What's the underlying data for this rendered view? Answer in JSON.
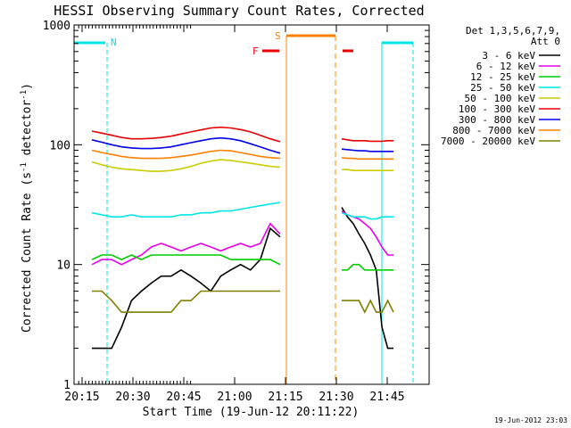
{
  "chart_data": {
    "type": "line",
    "title": "HESSI Observing Summary Count Rates, Corrected",
    "xlabel": "Start Time (19-Jun-12 20:11:22)",
    "ylabel_main": "Corrected Count Rate (s",
    "ylabel_sup1": "-1",
    "ylabel_mid": " detector",
    "ylabel_sup2": "-1",
    "ylabel_end": ")",
    "xlim_minutes": [
      20.1,
      21.8
    ],
    "x_ticks": [
      "20:15",
      "20:30",
      "20:45",
      "21:00",
      "21:15",
      "21:30",
      "21:45"
    ],
    "y_scale": "log",
    "ylim": [
      1,
      1000
    ],
    "y_ticks": [
      "1",
      "10",
      "100",
      "1000"
    ],
    "legend_title1": "Det 1,3,5,6,7,9,",
    "legend_title2": "Att 0",
    "legend_position": "right",
    "date_stamp": "19-Jun-2012 23:03",
    "flag_labels": {
      "night": "N",
      "saa": "S",
      "flare": "F"
    },
    "series": [
      {
        "name": "3 - 6 keV",
        "color": "#000000",
        "segA": [
          2,
          2,
          2,
          3,
          5,
          6,
          7,
          8,
          8,
          9,
          8,
          7,
          6,
          8,
          9,
          10,
          9,
          11,
          20,
          17
        ],
        "segB": [
          30,
          25,
          22,
          18,
          15,
          12,
          9,
          3,
          2,
          2
        ]
      },
      {
        "name": "6 - 12 keV",
        "color": "#e600e6",
        "segA": [
          10,
          11,
          11,
          10,
          11,
          12,
          14,
          15,
          14,
          13,
          14,
          15,
          14,
          13,
          14,
          15,
          14,
          15,
          22,
          18
        ],
        "segB": [
          28,
          26,
          25,
          24,
          22,
          20,
          17,
          14,
          12,
          12
        ]
      },
      {
        "name": "12 - 25 keV",
        "color": "#00cc00",
        "segA": [
          11,
          12,
          12,
          11,
          12,
          11,
          12,
          12,
          12,
          12,
          12,
          12,
          12,
          12,
          11,
          11,
          11,
          11,
          11,
          10
        ],
        "segB": [
          9,
          9,
          10,
          10,
          9,
          9,
          9,
          9,
          9,
          9
        ]
      },
      {
        "name": "25 - 50 keV",
        "color": "#00e6e6",
        "segA": [
          27,
          26,
          25,
          25,
          26,
          25,
          25,
          25,
          25,
          26,
          26,
          27,
          27,
          28,
          28,
          29,
          30,
          31,
          32,
          33
        ],
        "segB": [
          27,
          26,
          25,
          25,
          25,
          24,
          24,
          25,
          25,
          25
        ]
      },
      {
        "name": "50 - 100 keV",
        "color": "#cccc00",
        "segA": [
          72,
          68,
          65,
          63,
          62,
          61,
          60,
          60,
          61,
          63,
          66,
          70,
          73,
          75,
          74,
          72,
          70,
          68,
          66,
          65
        ],
        "segB": [
          62,
          62,
          61,
          61,
          61,
          61,
          61,
          61,
          61,
          61
        ]
      },
      {
        "name": "100 - 300 keV",
        "color": "#e60000",
        "segA": [
          130,
          125,
          120,
          115,
          112,
          112,
          113,
          115,
          118,
          123,
          128,
          133,
          138,
          140,
          138,
          134,
          128,
          120,
          112,
          106
        ],
        "segB": [
          112,
          110,
          108,
          108,
          108,
          107,
          107,
          107,
          108,
          108
        ]
      },
      {
        "name": "300 - 800 keV",
        "color": "#0000e6",
        "segA": [
          110,
          105,
          100,
          96,
          94,
          93,
          93,
          94,
          96,
          100,
          104,
          108,
          112,
          114,
          112,
          108,
          102,
          96,
          90,
          85
        ],
        "segB": [
          92,
          91,
          90,
          89,
          89,
          88,
          88,
          88,
          88,
          88
        ]
      },
      {
        "name": "800 - 7000 keV",
        "color": "#ff8000",
        "segA": [
          90,
          86,
          83,
          80,
          78,
          77,
          77,
          77,
          78,
          80,
          82,
          85,
          88,
          90,
          89,
          86,
          83,
          80,
          78,
          77
        ],
        "segB": [
          78,
          77,
          77,
          76,
          76,
          76,
          76,
          76,
          76,
          76
        ]
      },
      {
        "name": "7000 - 20000 keV",
        "color": "#808000",
        "segA": [
          6,
          6,
          5,
          4,
          4,
          4,
          4,
          4,
          4,
          5,
          5,
          6,
          6,
          6,
          6,
          6,
          6,
          6,
          6,
          6
        ],
        "segB": [
          5,
          5,
          5,
          5,
          4,
          5,
          4,
          4,
          5,
          4
        ]
      }
    ]
  }
}
